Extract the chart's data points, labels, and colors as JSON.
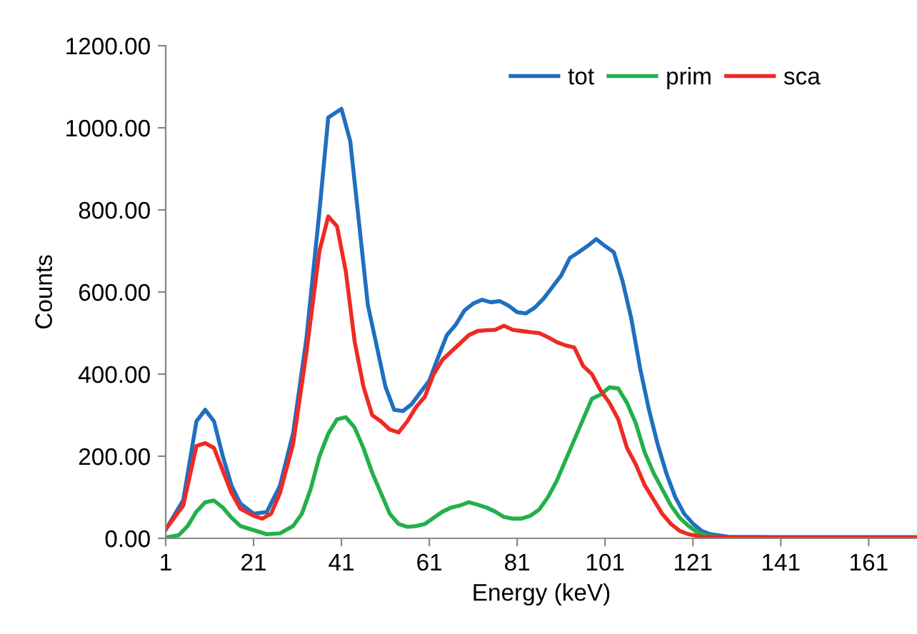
{
  "chart_data": {
    "type": "line",
    "xlabel": "Energy (keV)",
    "ylabel": "Counts",
    "xlim": [
      1,
      172
    ],
    "xticks": [
      1,
      21,
      41,
      61,
      81,
      101,
      121,
      141,
      161
    ],
    "ylim": [
      0,
      1200
    ],
    "yticks": [
      {
        "value": 0,
        "label": "0.00"
      },
      {
        "value": 200,
        "label": "200.00"
      },
      {
        "value": 400,
        "label": "400.00"
      },
      {
        "value": 600,
        "label": "600.00"
      },
      {
        "value": 800,
        "label": "800.00"
      },
      {
        "value": 1000,
        "label": "1000.00"
      },
      {
        "value": 1200,
        "label": "1200.00"
      }
    ],
    "grid": false,
    "legend": "top right",
    "marker": "none",
    "line_style": "solid",
    "series": [
      {
        "name": "tot",
        "color": "#1f6fbf",
        "x": [
          1,
          5,
          8,
          10,
          12,
          14,
          16,
          18,
          21,
          24,
          27,
          30,
          33,
          36,
          38,
          41,
          43,
          45,
          47,
          49,
          51,
          53,
          55,
          57,
          59,
          61,
          63,
          65,
          67,
          69,
          71,
          73,
          75,
          77,
          79,
          81,
          83,
          85,
          87,
          89,
          91,
          93,
          95,
          97,
          99,
          101,
          103,
          105,
          107,
          109,
          111,
          113,
          115,
          117,
          119,
          121,
          123,
          125,
          129,
          140,
          150,
          160,
          172
        ],
        "values": [
          21,
          93,
          285,
          313,
          285,
          200,
          128,
          85,
          60,
          64,
          128,
          256,
          484,
          797,
          1025,
          1046,
          968,
          769,
          569,
          470,
          370,
          313,
          310,
          327,
          356,
          384,
          441,
          495,
          520,
          555,
          572,
          581,
          575,
          578,
          567,
          551,
          548,
          562,
          584,
          612,
          640,
          683,
          697,
          712,
          729,
          712,
          697,
          626,
          534,
          413,
          313,
          228,
          157,
          100,
          60,
          36,
          18,
          10,
          4,
          3,
          3,
          3,
          3
        ]
      },
      {
        "name": "prim",
        "color": "#22b04b",
        "x": [
          1,
          4,
          6,
          8,
          10,
          12,
          14,
          16,
          18,
          21,
          24,
          27,
          30,
          32,
          34,
          36,
          38,
          40,
          42,
          44,
          46,
          48,
          50,
          52,
          54,
          56,
          58,
          60,
          62,
          64,
          66,
          68,
          70,
          72,
          74,
          76,
          78,
          80,
          82,
          84,
          86,
          88,
          90,
          92,
          94,
          96,
          98,
          100,
          102,
          104,
          106,
          108,
          110,
          112,
          114,
          116,
          118,
          120,
          122,
          124,
          127,
          140
        ],
        "values": [
          2,
          8,
          30,
          65,
          88,
          92,
          75,
          50,
          30,
          20,
          10,
          12,
          30,
          60,
          120,
          200,
          255,
          290,
          295,
          270,
          220,
          160,
          110,
          60,
          35,
          28,
          30,
          35,
          50,
          65,
          75,
          80,
          88,
          82,
          75,
          65,
          52,
          48,
          48,
          55,
          70,
          100,
          140,
          190,
          240,
          290,
          340,
          350,
          368,
          365,
          330,
          280,
          210,
          160,
          120,
          80,
          50,
          30,
          15,
          7,
          2,
          1
        ]
      },
      {
        "name": "sca",
        "color": "#ee2a24",
        "x": [
          1,
          5,
          8,
          10,
          12,
          14,
          16,
          18,
          21,
          23,
          25,
          27,
          30,
          33,
          36,
          38,
          40,
          42,
          44,
          46,
          48,
          50,
          52,
          54,
          56,
          58,
          60,
          62,
          64,
          66,
          68,
          70,
          72,
          74,
          76,
          78,
          80,
          82,
          84,
          86,
          88,
          90,
          92,
          94,
          96,
          98,
          100,
          102,
          104,
          106,
          108,
          110,
          112,
          114,
          116,
          118,
          120,
          123,
          130,
          150,
          172
        ],
        "values": [
          22,
          80,
          225,
          232,
          220,
          165,
          110,
          72,
          55,
          48,
          60,
          110,
          230,
          450,
          700,
          784,
          760,
          650,
          480,
          370,
          300,
          285,
          265,
          258,
          285,
          320,
          345,
          400,
          435,
          455,
          475,
          495,
          505,
          507,
          508,
          518,
          508,
          505,
          502,
          500,
          490,
          478,
          470,
          465,
          420,
          400,
          360,
          330,
          290,
          220,
          180,
          130,
          95,
          60,
          35,
          18,
          10,
          4,
          2,
          2,
          2
        ]
      }
    ]
  }
}
